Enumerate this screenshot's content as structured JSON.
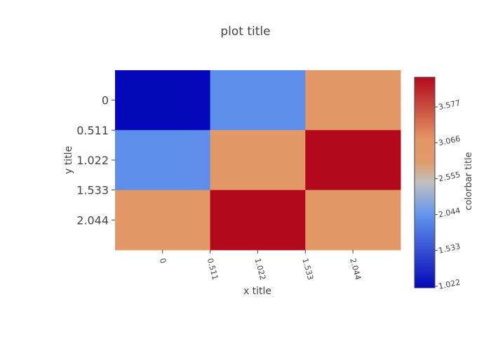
{
  "chart_data": {
    "type": "heatmap",
    "title": "plot title",
    "xlabel": "x title",
    "ylabel": "y title",
    "colorbar_title": "colorbar title",
    "x_edges": [
      -0.51,
      0.511,
      1.533,
      2.555
    ],
    "y_edges": [
      -0.511,
      0.511,
      1.533,
      2.555
    ],
    "x_ticks": [
      "0",
      "0.511",
      "1.022",
      "1.533",
      "2.044"
    ],
    "x_tick_values": [
      0,
      0.511,
      1.022,
      1.533,
      2.044
    ],
    "y_ticks": [
      "0",
      "0.511",
      "1.022",
      "1.533",
      "2.044"
    ],
    "y_tick_values": [
      0,
      0.511,
      1.022,
      1.533,
      2.044
    ],
    "z": [
      [
        1.0,
        2.0,
        3.0
      ],
      [
        2.0,
        3.0,
        4.0
      ],
      [
        3.0,
        4.0,
        3.0
      ]
    ],
    "colorbar_ticks": [
      "1.022",
      "1.533",
      "2.044",
      "2.555",
      "3.066",
      "3.577"
    ],
    "colorbar_tick_values": [
      1.022,
      1.533,
      2.044,
      2.555,
      3.066,
      3.577
    ],
    "zmin": 1.0,
    "zmax": 4.0,
    "colorscale": [
      [
        0.0,
        "#0508b8"
      ],
      [
        0.35,
        "#6495ed"
      ],
      [
        0.5,
        "#c0c0c0"
      ],
      [
        0.6,
        "#e19a6a"
      ],
      [
        0.7,
        "#e39866"
      ],
      [
        1.0,
        "#b20a1c"
      ]
    ]
  }
}
